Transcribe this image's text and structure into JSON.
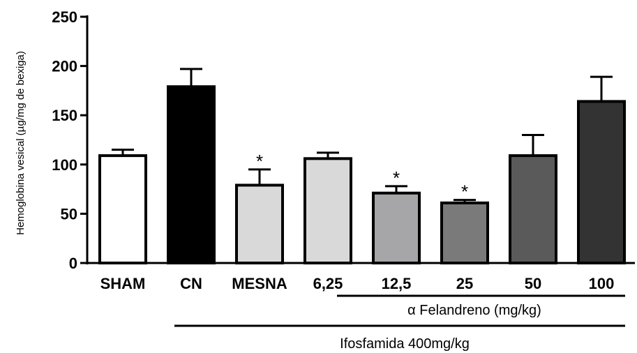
{
  "chart_data": {
    "type": "bar",
    "ylabel": "Hemoglobina vesical (µg/mg de bexiga)",
    "ylim": [
      0,
      250
    ],
    "yticks": [
      0,
      50,
      100,
      150,
      200,
      250
    ],
    "categories": [
      "SHAM",
      "CN",
      "MESNA",
      "6,25",
      "12,5",
      "25",
      "50",
      "100"
    ],
    "values": [
      109,
      179,
      79,
      106,
      71,
      61,
      109,
      164
    ],
    "errors": [
      6,
      18,
      16,
      6,
      7,
      3,
      21,
      25
    ],
    "significance": [
      "",
      "",
      "*",
      "",
      "*",
      "*",
      "",
      ""
    ],
    "colors": [
      "#ffffff",
      "#000000",
      "#d9d9d9",
      "#d9d9d9",
      "#a6a6a8",
      "#7a7a7a",
      "#5a5a5a",
      "#333333"
    ],
    "group_labels": {
      "felandreno": "α Felandreno (mg/kg)",
      "ifosfamida": "Ifosfamida 400mg/kg"
    }
  }
}
